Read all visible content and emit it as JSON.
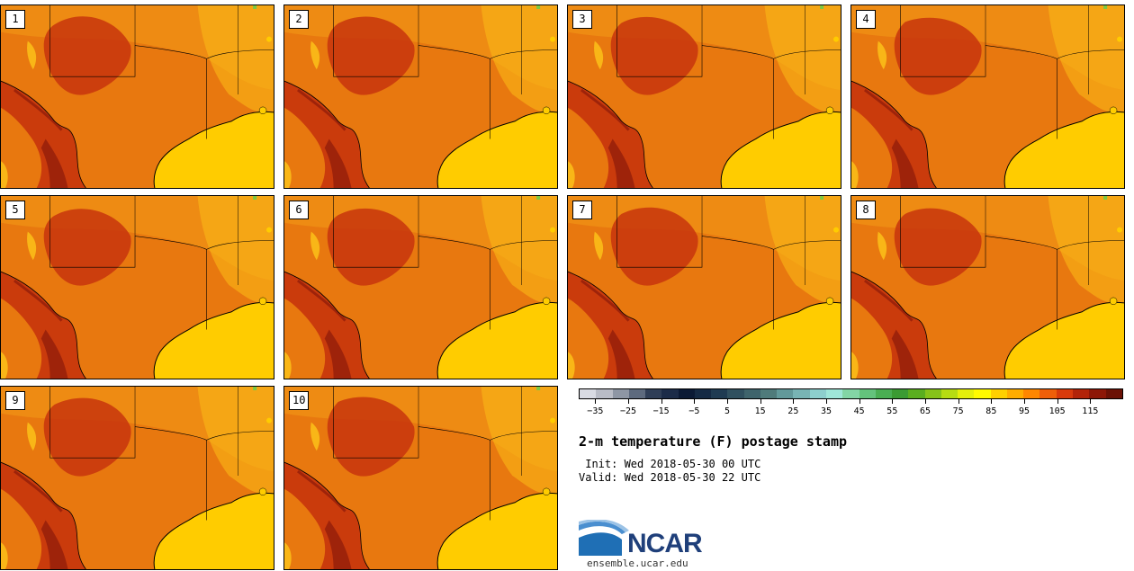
{
  "stamps": [
    {
      "label": "1"
    },
    {
      "label": "2"
    },
    {
      "label": "3"
    },
    {
      "label": "4"
    },
    {
      "label": "5"
    },
    {
      "label": "6"
    },
    {
      "label": "7"
    },
    {
      "label": "8"
    },
    {
      "label": "9"
    },
    {
      "label": "10"
    }
  ],
  "map_colors": {
    "base": "#e8780f",
    "hot": "#c4300c",
    "hottest": "#8b1a0a",
    "warm": "#f39a18",
    "mild": "#fbbd18",
    "water": "#ffcc00",
    "green_edge": "#7ac943"
  },
  "colorbar": {
    "colors": [
      "#d9dbe3",
      "#b9bcc6",
      "#8e96a4",
      "#5d6a7e",
      "#2f3e57",
      "#1b2b48",
      "#0b1a35",
      "#152a44",
      "#1f3b52",
      "#30505f",
      "#3f646c",
      "#4f7b7b",
      "#62999a",
      "#78b4b4",
      "#8dcfcd",
      "#9fe6d8",
      "#83d5a5",
      "#64c37c",
      "#4aae53",
      "#3b9b33",
      "#5aae1f",
      "#86c319",
      "#b6dc12",
      "#e4ef0b",
      "#fffa00",
      "#ffd000",
      "#ffad00",
      "#ff8700",
      "#ef5f09",
      "#d83a0b",
      "#b22409",
      "#8d1707",
      "#6b1105"
    ],
    "tick_labels": [
      "-35",
      "-25",
      "-15",
      "-5",
      "5",
      "15",
      "25",
      "35",
      "45",
      "55",
      "65",
      "75",
      "85",
      "95",
      "105",
      "115"
    ]
  },
  "title": "2-m temperature (F) postage stamp",
  "init": " Init: Wed 2018-05-30 00 UTC",
  "valid": "Valid: Wed 2018-05-30 22 UTC",
  "logo": {
    "text": "NCAR",
    "site": "ensemble.ucar.edu"
  }
}
